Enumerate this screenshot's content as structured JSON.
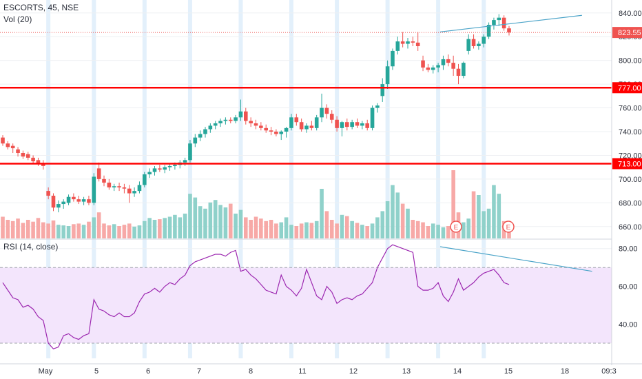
{
  "header": {
    "symbol": "ESCORTS, 45, NSE",
    "volume_label": "Vol (20)",
    "rsi_label": "RSI (14, close)"
  },
  "colors": {
    "up": "#26a69a",
    "down": "#ef5350",
    "up_volume": "#8fd1ca",
    "down_volume": "#f7a9a7",
    "level_line": "#ff0000",
    "trendline": "#4aa3c8",
    "rsi_line": "#9c27b0",
    "rsi_band": "#f3e5fc",
    "last_price": "#ef5350",
    "session_highlight": "#e3f0fb",
    "earnings_marker": "#ef5350"
  },
  "chart_data": [
    {
      "type": "candlestick",
      "title": "ESCORTS, 45, NSE",
      "ylim": [
        650,
        848
      ],
      "y_ticks": [
        "660.00",
        "680.00",
        "700.00",
        "720.00",
        "740.00",
        "760.00",
        "780.00",
        "800.00",
        "820.00",
        "840.00"
      ],
      "x_tick_labels": [
        "May",
        "5",
        "6",
        "7",
        "8",
        "11",
        "12",
        "13",
        "14",
        "15",
        "18",
        "09:3"
      ],
      "last_price": "823.55",
      "horizontal_levels": [
        {
          "label": "777.00",
          "value": 777
        },
        {
          "label": "713.00",
          "value": 713
        }
      ],
      "trendline": {
        "from": [
          43.2,
          824
        ],
        "to": [
          57.2,
          838
        ]
      },
      "candles": [
        {
          "o": 735,
          "h": 737,
          "l": 728,
          "c": 730
        },
        {
          "o": 730,
          "h": 732,
          "l": 725,
          "c": 727
        },
        {
          "o": 728,
          "h": 730,
          "l": 722,
          "c": 726
        },
        {
          "o": 725,
          "h": 727,
          "l": 719,
          "c": 722
        },
        {
          "o": 722,
          "h": 724,
          "l": 717,
          "c": 719
        },
        {
          "o": 721,
          "h": 723,
          "l": 716,
          "c": 718
        },
        {
          "o": 718,
          "h": 720,
          "l": 713,
          "c": 715
        },
        {
          "o": 716,
          "h": 718,
          "l": 711,
          "c": 713
        },
        {
          "o": 713,
          "h": 716,
          "l": 708,
          "c": 711
        },
        {
          "o": 690,
          "h": 693,
          "l": 683,
          "c": 686
        },
        {
          "o": 686,
          "h": 688,
          "l": 673,
          "c": 676
        },
        {
          "o": 676,
          "h": 682,
          "l": 672,
          "c": 679
        },
        {
          "o": 679,
          "h": 683,
          "l": 675,
          "c": 681
        },
        {
          "o": 680,
          "h": 687,
          "l": 678,
          "c": 685
        },
        {
          "o": 685,
          "h": 688,
          "l": 681,
          "c": 683
        },
        {
          "o": 683,
          "h": 686,
          "l": 679,
          "c": 681
        },
        {
          "o": 681,
          "h": 685,
          "l": 678,
          "c": 683
        },
        {
          "o": 683,
          "h": 686,
          "l": 678,
          "c": 680
        },
        {
          "o": 680,
          "h": 705,
          "l": 678,
          "c": 702
        },
        {
          "o": 709,
          "h": 714,
          "l": 698,
          "c": 700
        },
        {
          "o": 700,
          "h": 703,
          "l": 694,
          "c": 697
        },
        {
          "o": 697,
          "h": 700,
          "l": 691,
          "c": 693
        },
        {
          "o": 693,
          "h": 696,
          "l": 690,
          "c": 694
        },
        {
          "o": 694,
          "h": 697,
          "l": 690,
          "c": 693
        },
        {
          "o": 693,
          "h": 696,
          "l": 688,
          "c": 692
        },
        {
          "o": 692,
          "h": 695,
          "l": 680,
          "c": 688
        },
        {
          "o": 688,
          "h": 693,
          "l": 685,
          "c": 690
        },
        {
          "o": 690,
          "h": 698,
          "l": 688,
          "c": 695
        },
        {
          "o": 695,
          "h": 706,
          "l": 693,
          "c": 704
        },
        {
          "o": 704,
          "h": 709,
          "l": 701,
          "c": 706
        },
        {
          "o": 706,
          "h": 711,
          "l": 703,
          "c": 709
        },
        {
          "o": 709,
          "h": 712,
          "l": 706,
          "c": 708
        },
        {
          "o": 708,
          "h": 712,
          "l": 705,
          "c": 710
        },
        {
          "o": 710,
          "h": 713,
          "l": 707,
          "c": 711
        },
        {
          "o": 711,
          "h": 714,
          "l": 708,
          "c": 712
        },
        {
          "o": 712,
          "h": 716,
          "l": 709,
          "c": 714
        },
        {
          "o": 714,
          "h": 718,
          "l": 711,
          "c": 716
        },
        {
          "o": 716,
          "h": 733,
          "l": 714,
          "c": 730
        },
        {
          "o": 730,
          "h": 738,
          "l": 727,
          "c": 735
        },
        {
          "o": 735,
          "h": 741,
          "l": 732,
          "c": 738
        },
        {
          "o": 738,
          "h": 744,
          "l": 735,
          "c": 742
        },
        {
          "o": 742,
          "h": 747,
          "l": 739,
          "c": 745
        },
        {
          "o": 745,
          "h": 749,
          "l": 742,
          "c": 747
        },
        {
          "o": 747,
          "h": 751,
          "l": 744,
          "c": 749
        },
        {
          "o": 749,
          "h": 752,
          "l": 746,
          "c": 750
        },
        {
          "o": 750,
          "h": 752,
          "l": 747,
          "c": 749
        },
        {
          "o": 749,
          "h": 754,
          "l": 747,
          "c": 752
        },
        {
          "o": 752,
          "h": 767,
          "l": 749,
          "c": 757
        },
        {
          "o": 757,
          "h": 760,
          "l": 746,
          "c": 749
        },
        {
          "o": 749,
          "h": 752,
          "l": 744,
          "c": 747
        },
        {
          "o": 747,
          "h": 750,
          "l": 742,
          "c": 745
        },
        {
          "o": 745,
          "h": 748,
          "l": 741,
          "c": 743
        },
        {
          "o": 743,
          "h": 746,
          "l": 739,
          "c": 741
        },
        {
          "o": 741,
          "h": 744,
          "l": 737,
          "c": 740
        },
        {
          "o": 740,
          "h": 742,
          "l": 736,
          "c": 738
        },
        {
          "o": 738,
          "h": 741,
          "l": 733,
          "c": 740
        },
        {
          "o": 740,
          "h": 744,
          "l": 735,
          "c": 743
        },
        {
          "o": 743,
          "h": 755,
          "l": 741,
          "c": 752
        },
        {
          "o": 752,
          "h": 755,
          "l": 745,
          "c": 748
        },
        {
          "o": 748,
          "h": 751,
          "l": 740,
          "c": 742
        },
        {
          "o": 742,
          "h": 747,
          "l": 739,
          "c": 745
        },
        {
          "o": 745,
          "h": 749,
          "l": 741,
          "c": 743
        },
        {
          "o": 743,
          "h": 754,
          "l": 741,
          "c": 752
        },
        {
          "o": 752,
          "h": 772,
          "l": 748,
          "c": 760
        },
        {
          "o": 760,
          "h": 763,
          "l": 751,
          "c": 755
        },
        {
          "o": 755,
          "h": 758,
          "l": 747,
          "c": 750
        },
        {
          "o": 750,
          "h": 753,
          "l": 740,
          "c": 743
        },
        {
          "o": 743,
          "h": 749,
          "l": 736,
          "c": 748
        },
        {
          "o": 748,
          "h": 751,
          "l": 741,
          "c": 744
        },
        {
          "o": 744,
          "h": 750,
          "l": 742,
          "c": 748
        },
        {
          "o": 748,
          "h": 751,
          "l": 743,
          "c": 745
        },
        {
          "o": 745,
          "h": 749,
          "l": 742,
          "c": 747
        },
        {
          "o": 747,
          "h": 750,
          "l": 741,
          "c": 743
        },
        {
          "o": 743,
          "h": 762,
          "l": 741,
          "c": 760
        },
        {
          "o": 760,
          "h": 764,
          "l": 756,
          "c": 762
        },
        {
          "o": 770,
          "h": 785,
          "l": 765,
          "c": 780
        },
        {
          "o": 780,
          "h": 800,
          "l": 776,
          "c": 795
        },
        {
          "o": 795,
          "h": 810,
          "l": 792,
          "c": 808
        },
        {
          "o": 808,
          "h": 820,
          "l": 805,
          "c": 816
        },
        {
          "o": 816,
          "h": 824,
          "l": 811,
          "c": 814
        },
        {
          "o": 814,
          "h": 819,
          "l": 810,
          "c": 816
        },
        {
          "o": 816,
          "h": 820,
          "l": 812,
          "c": 815
        },
        {
          "o": 815,
          "h": 824,
          "l": 808,
          "c": 812
        },
        {
          "o": 800,
          "h": 804,
          "l": 791,
          "c": 794
        },
        {
          "o": 794,
          "h": 797,
          "l": 790,
          "c": 792
        },
        {
          "o": 792,
          "h": 796,
          "l": 789,
          "c": 794
        },
        {
          "o": 794,
          "h": 798,
          "l": 790,
          "c": 796
        },
        {
          "o": 796,
          "h": 804,
          "l": 792,
          "c": 801
        },
        {
          "o": 801,
          "h": 805,
          "l": 795,
          "c": 798
        },
        {
          "o": 798,
          "h": 804,
          "l": 787,
          "c": 793
        },
        {
          "o": 793,
          "h": 797,
          "l": 780,
          "c": 787
        },
        {
          "o": 787,
          "h": 799,
          "l": 785,
          "c": 798
        },
        {
          "o": 808,
          "h": 822,
          "l": 805,
          "c": 818
        },
        {
          "o": 818,
          "h": 822,
          "l": 810,
          "c": 812
        },
        {
          "o": 812,
          "h": 816,
          "l": 809,
          "c": 814
        },
        {
          "o": 814,
          "h": 822,
          "l": 811,
          "c": 820
        },
        {
          "o": 820,
          "h": 832,
          "l": 818,
          "c": 830
        },
        {
          "o": 830,
          "h": 836,
          "l": 826,
          "c": 834
        },
        {
          "o": 834,
          "h": 839,
          "l": 829,
          "c": 836
        },
        {
          "o": 836,
          "h": 838,
          "l": 825,
          "c": 827
        },
        {
          "o": 827,
          "h": 829,
          "l": 821,
          "c": 823.55
        }
      ],
      "volume": [
        35,
        30,
        28,
        32,
        25,
        30,
        27,
        33,
        26,
        24,
        29,
        22,
        21,
        20,
        23,
        24,
        22,
        27,
        34,
        42,
        24,
        21,
        23,
        20,
        22,
        24,
        19,
        21,
        28,
        33,
        30,
        31,
        33,
        35,
        38,
        34,
        40,
        72,
        66,
        52,
        48,
        58,
        62,
        54,
        50,
        56,
        40,
        46,
        34,
        30,
        35,
        32,
        28,
        30,
        24,
        26,
        34,
        22,
        20,
        24,
        26,
        25,
        28,
        80,
        44,
        30,
        24,
        38,
        36,
        28,
        25,
        22,
        20,
        24,
        34,
        44,
        60,
        86,
        74,
        56,
        48,
        30,
        28,
        26,
        20,
        24,
        22,
        18,
        20,
        110,
        42,
        26,
        32,
        76,
        70,
        44,
        48,
        86,
        72,
        28,
        24
      ]
    },
    {
      "type": "line",
      "title": "RSI (14, close)",
      "ylim": [
        22,
        85
      ],
      "y_ticks": [
        "40.00",
        "60.00",
        "80.00"
      ],
      "band": [
        30,
        70
      ],
      "trendline": {
        "from": [
          43.2,
          81
        ],
        "to": [
          58.2,
          68
        ]
      },
      "series": [
        {
          "values": [
            62,
            58,
            54,
            53,
            49,
            50,
            48,
            44,
            42,
            30,
            27,
            28,
            34,
            35,
            33,
            32,
            34,
            35,
            53,
            48,
            47,
            45,
            44,
            46,
            44,
            44,
            46,
            52,
            56,
            57,
            59,
            57,
            60,
            62,
            61,
            64,
            66,
            71,
            73,
            74,
            75,
            76,
            77,
            77,
            76,
            78,
            79,
            68,
            69,
            66,
            64,
            61,
            58,
            57,
            56,
            66,
            60,
            58,
            55,
            59,
            69,
            62,
            55,
            53,
            60,
            57,
            51,
            53,
            54,
            53,
            55,
            56,
            59,
            62,
            70,
            75,
            80,
            82,
            81,
            80,
            79,
            78,
            60,
            58,
            58,
            59,
            62,
            55,
            52,
            57,
            64,
            58,
            60,
            62,
            65,
            67,
            68,
            69,
            66,
            62,
            61
          ]
        }
      ]
    }
  ],
  "rsi_axis": {
    "ticks": [
      "40.00",
      "60.00",
      "80.00"
    ]
  }
}
